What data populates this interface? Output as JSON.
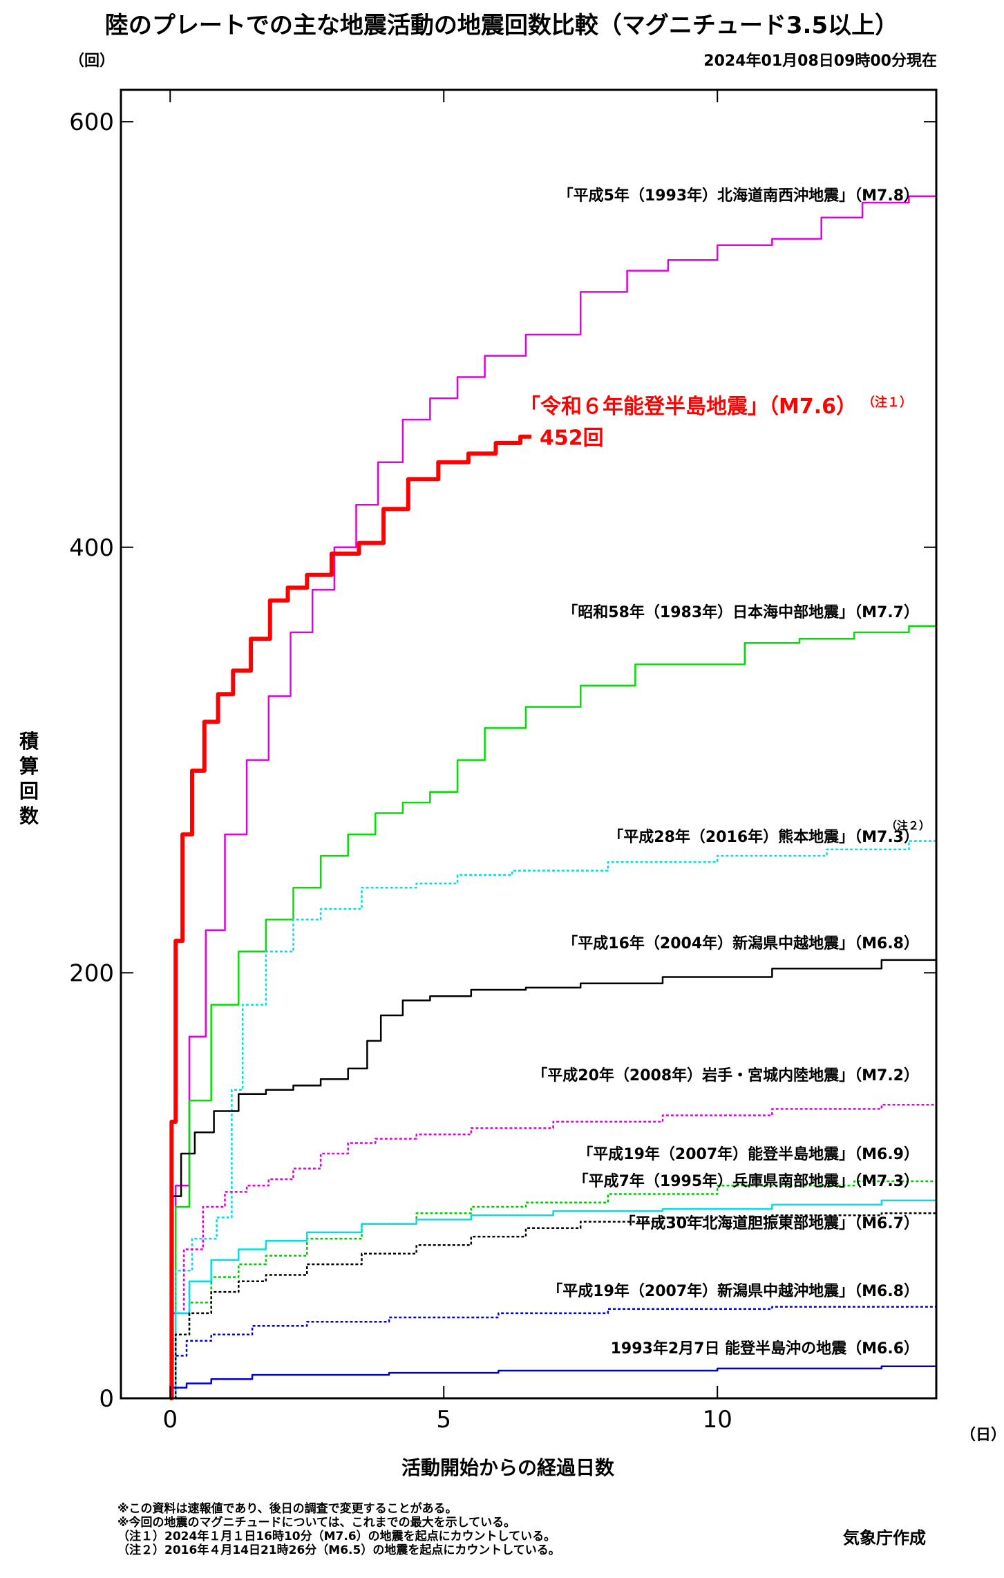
{
  "chart_data": {
    "type": "line",
    "title": "陸のプレートでの主な地震活動の地震回数比較（マグニチュード3.5以上）",
    "subtitle": "2024年01月08日09時00分現在",
    "y_unit": "（回）",
    "x_unit": "（日）",
    "xlabel": "活動開始からの経過日数",
    "ylabel": "積算回数",
    "xlim": [
      -0.9,
      14
    ],
    "ylim": [
      0,
      615
    ],
    "xticks": [
      0,
      5,
      10
    ],
    "yticks": [
      0,
      200,
      400,
      600
    ],
    "grid": false,
    "series": [
      {
        "name": "「令和６年能登半島地震」（M7.6）",
        "note": "（注１）",
        "color": "#ff0000",
        "dash": "solid",
        "width": 6,
        "end_label": "452回",
        "x": [
          0,
          0.05,
          0.15,
          0.3,
          0.5,
          0.75,
          1.0,
          1.3,
          1.65,
          2.0,
          2.3,
          2.7,
          3.2,
          3.7,
          4.1,
          4.6,
          5.2,
          5.7,
          6.2,
          6.6
        ],
        "y": [
          0,
          130,
          215,
          265,
          295,
          318,
          331,
          342,
          357,
          375,
          381,
          387,
          397,
          402,
          418,
          432,
          440,
          444,
          449,
          452
        ]
      },
      {
        "name": "「平成5年（1993年）北海道南西沖地震」（M7.8）",
        "note": "",
        "color": "#e000e0",
        "dash": "solid",
        "width": 2.5,
        "x": [
          0,
          0.2,
          0.5,
          0.8,
          1.2,
          1.6,
          2.0,
          2.4,
          2.8,
          3.2,
          3.6,
          4.0,
          4.5,
          5.0,
          5.5,
          6.0,
          7.0,
          8.0,
          8.7,
          9.5,
          10.5,
          11.5,
          12.3,
          13.0,
          14.0
        ],
        "y": [
          0,
          100,
          170,
          220,
          265,
          300,
          330,
          360,
          380,
          400,
          420,
          440,
          460,
          470,
          480,
          490,
          500,
          520,
          530,
          535,
          542,
          545,
          555,
          562,
          565
        ]
      },
      {
        "name": "「昭和58年（1983年）日本海中部地震」（M7.7）",
        "note": "",
        "color": "#00e000",
        "dash": "solid",
        "width": 2.5,
        "x": [
          0,
          0.2,
          0.5,
          1.0,
          1.5,
          2.0,
          2.5,
          3.0,
          3.5,
          4.0,
          4.5,
          5.0,
          5.5,
          6.0,
          7.0,
          8.0,
          9.0,
          10.0,
          11.0,
          12.0,
          13.0,
          14.0
        ],
        "y": [
          0,
          90,
          140,
          185,
          210,
          225,
          240,
          255,
          265,
          275,
          280,
          285,
          300,
          315,
          325,
          335,
          345,
          345,
          355,
          357,
          360,
          363
        ]
      },
      {
        "name": "「平成28年（2016年）熊本地震」（M7.3）",
        "note": "（注２）",
        "color": "#00e0e0",
        "dash": "4,3",
        "width": 2.5,
        "x": [
          0,
          0.2,
          0.6,
          1.1,
          1.15,
          1.5,
          2.0,
          2.5,
          3.0,
          4.0,
          5.0,
          5.5,
          7.0,
          9.0,
          11.0,
          13.0,
          14.0
        ],
        "y": [
          0,
          60,
          75,
          85,
          145,
          185,
          210,
          225,
          230,
          240,
          242,
          246,
          248,
          252,
          255,
          258,
          262
        ]
      },
      {
        "name": "「平成16年（2004年）新潟県中越地震」（M6.8）",
        "note": "",
        "color": "#000000",
        "dash": "solid",
        "width": 2.5,
        "x": [
          0,
          0.1,
          0.3,
          0.6,
          1.0,
          1.5,
          2.0,
          2.5,
          3.0,
          3.5,
          3.7,
          4.0,
          4.5,
          5.0,
          6.0,
          7.0,
          8.0,
          10.0,
          12.0,
          14.0
        ],
        "y": [
          0,
          95,
          115,
          125,
          135,
          143,
          145,
          147,
          150,
          155,
          168,
          180,
          187,
          189,
          192,
          193,
          195,
          198,
          202,
          206
        ]
      },
      {
        "name": "「平成20年（2008年）岩手・宮城内陸地震」（M7.2）",
        "note": "",
        "color": "#e000e0",
        "dash": "4,3",
        "width": 2.5,
        "x": [
          0,
          0.1,
          0.4,
          0.8,
          1.2,
          1.6,
          2.0,
          2.5,
          3.0,
          3.5,
          4.0,
          5.0,
          6.0,
          8.0,
          10.0,
          12.0,
          14.0
        ],
        "y": [
          0,
          40,
          70,
          90,
          97,
          100,
          103,
          108,
          115,
          120,
          122,
          124,
          127,
          130,
          133,
          136,
          138
        ]
      },
      {
        "name": "「平成19年（2007年）能登半島地震」（M6.9）",
        "note": "",
        "color": "#00cc00",
        "dash": "4,3",
        "width": 2.5,
        "x": [
          0,
          0.2,
          0.5,
          1.0,
          1.5,
          2.0,
          3.0,
          4.0,
          5.0,
          6.0,
          7.0,
          9.0,
          11.0,
          14.0
        ],
        "y": [
          0,
          30,
          45,
          57,
          63,
          67,
          75,
          82,
          87,
          90,
          92,
          96,
          100,
          102
        ]
      },
      {
        "name": "「平成7年（1995年）兵庫県南部地震」（M7.3）",
        "note": "",
        "color": "#00e0e0",
        "dash": "solid",
        "width": 2.5,
        "x": [
          0,
          0.2,
          0.5,
          1.0,
          1.5,
          2.0,
          3.0,
          4.0,
          5.0,
          6.0,
          8.0,
          10.0,
          12.0,
          14.0
        ],
        "y": [
          0,
          40,
          55,
          65,
          70,
          74,
          78,
          82,
          84,
          86,
          88,
          89,
          91,
          93
        ]
      },
      {
        "name": "「平成30年北海道胆振東部地震」（M6.7）",
        "note": "",
        "color": "#000000",
        "dash": "4,3",
        "width": 2.5,
        "x": [
          0,
          0.2,
          0.5,
          1.0,
          1.5,
          2.0,
          3.0,
          4.0,
          5.0,
          6.0,
          7.0,
          8.0,
          10.0,
          12.0,
          14.0
        ],
        "y": [
          0,
          30,
          40,
          50,
          55,
          58,
          63,
          68,
          72,
          76,
          80,
          83,
          85,
          86,
          87
        ]
      },
      {
        "name": "「平成19年（2007年）新潟県中越沖地震」（M6.8）",
        "note": "",
        "color": "#0000e0",
        "dash": "4,3",
        "width": 2.5,
        "x": [
          0,
          0.1,
          0.5,
          1.0,
          2.0,
          3.0,
          5.0,
          7.0,
          9.0,
          10.0,
          12.0,
          14.0
        ],
        "y": [
          0,
          20,
          27,
          30,
          34,
          36,
          38,
          40,
          42,
          42,
          43,
          43
        ]
      },
      {
        "name": "1993年2月7日 能登半島沖の地震（M6.6）",
        "note": "",
        "color": "#0000cc",
        "dash": "solid",
        "width": 2.5,
        "x": [
          0,
          0.1,
          0.5,
          1.0,
          2.0,
          3.0,
          5.0,
          7.0,
          9.0,
          11.0,
          12.0,
          14.0
        ],
        "y": [
          0,
          5,
          7,
          9,
          11,
          11,
          12,
          13,
          13,
          14,
          14,
          15
        ]
      }
    ]
  },
  "notes": [
    "※この資料は速報値であり、後日の調査で変更することがある。",
    "※今回の地震のマグニチュードについては、これまでの最大を示している。",
    "（注１）2024年１月１日16時10分（M7.6）の地震を起点にカウントしている。",
    "（注２）2016年４月14日21時26分（M6.5）の地震を起点にカウントしている。"
  ],
  "credit": "気象庁作成"
}
